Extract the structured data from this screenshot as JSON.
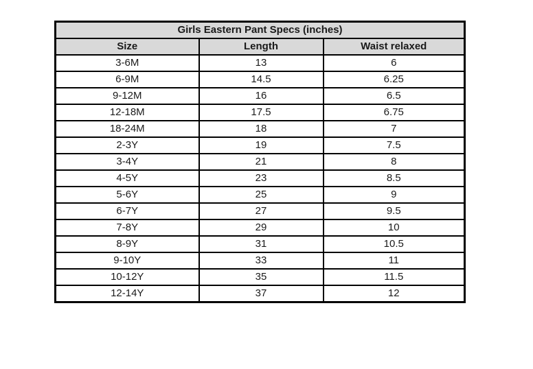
{
  "table": {
    "title": "Girls Eastern Pant Specs (inches)",
    "columns": [
      "Size",
      "Length",
      "Waist relaxed"
    ],
    "rows": [
      {
        "size": "3-6M",
        "length": "13",
        "waist": "6"
      },
      {
        "size": "6-9M",
        "length": "14.5",
        "waist": "6.25"
      },
      {
        "size": "9-12M",
        "length": "16",
        "waist": "6.5"
      },
      {
        "size": "12-18M",
        "length": "17.5",
        "waist": "6.75"
      },
      {
        "size": "18-24M",
        "length": "18",
        "waist": "7"
      },
      {
        "size": "2-3Y",
        "length": "19",
        "waist": "7.5"
      },
      {
        "size": "3-4Y",
        "length": "21",
        "waist": "8"
      },
      {
        "size": "4-5Y",
        "length": "23",
        "waist": "8.5"
      },
      {
        "size": "5-6Y",
        "length": "25",
        "waist": "9"
      },
      {
        "size": "6-7Y",
        "length": "27",
        "waist": "9.5"
      },
      {
        "size": "7-8Y",
        "length": "29",
        "waist": "10"
      },
      {
        "size": "8-9Y",
        "length": "31",
        "waist": "10.5"
      },
      {
        "size": "9-10Y",
        "length": "33",
        "waist": "11"
      },
      {
        "size": "10-12Y",
        "length": "35",
        "waist": "11.5"
      },
      {
        "size": "12-14Y",
        "length": "37",
        "waist": "12"
      }
    ],
    "colors": {
      "header_bg": "#d9d9d9",
      "border": "#000000",
      "text": "#1a1a1a",
      "background": "#ffffff"
    }
  }
}
